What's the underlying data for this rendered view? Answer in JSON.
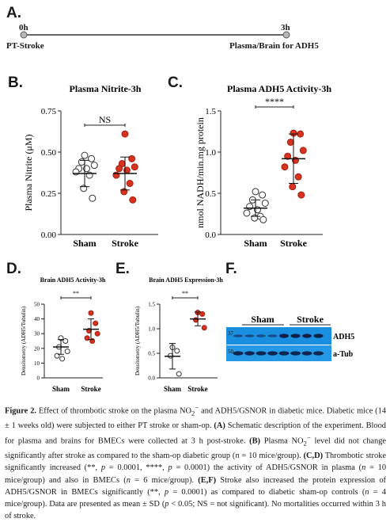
{
  "panels": {
    "a": {
      "letter": "A.",
      "time_start": "0h",
      "time_end": "3h",
      "label_start": "PT-Stroke",
      "label_end": "Plasma/Brain for ADH5"
    },
    "d": {
      "letter": "D."
    },
    "e": {
      "letter": "E."
    },
    "f": {
      "letter": "F.",
      "group_left": "Sham",
      "group_right": "Stroke",
      "band_top_label": "ADH5",
      "band_bottom_label": "a-Tub",
      "marker_top": "37",
      "marker_bottom": "50"
    }
  },
  "chart_data": [
    {
      "panel": "B.",
      "type": "scatter",
      "title": "Plasma Nitrite-3h",
      "ylabel": "Plasma Nitrite (μM)",
      "categories": [
        "Sham",
        "Stroke"
      ],
      "ylim": [
        0,
        0.75
      ],
      "yticks": [
        "0.00",
        "0.25",
        "0.50",
        "0.75"
      ],
      "significance": "NS",
      "series": [
        {
          "values": [
            0.48,
            0.46,
            0.44,
            0.42,
            0.4,
            0.4,
            0.38,
            0.36,
            0.28,
            0.22
          ],
          "mean": 0.37,
          "sd": 0.08
        },
        {
          "values": [
            0.61,
            0.46,
            0.43,
            0.41,
            0.4,
            0.39,
            0.36,
            0.31,
            0.26,
            0.21
          ],
          "mean": 0.37,
          "sd": 0.1
        }
      ]
    },
    {
      "panel": "C.",
      "type": "scatter",
      "title": "Plasma ADH5 Activity-3h",
      "ylabel": "nmol NADH/min.mg protein",
      "categories": [
        "Sham",
        "Stroke"
      ],
      "ylim": [
        0,
        1.5
      ],
      "yticks": [
        "0.0",
        "0.5",
        "1.0",
        "1.5"
      ],
      "significance": "****",
      "series": [
        {
          "values": [
            0.52,
            0.48,
            0.42,
            0.38,
            0.34,
            0.3,
            0.26,
            0.22,
            0.2,
            0.18
          ],
          "mean": 0.32,
          "sd": 0.1
        },
        {
          "values": [
            1.23,
            1.22,
            1.12,
            1.02,
            0.95,
            0.9,
            0.82,
            0.7,
            0.58,
            0.48
          ],
          "mean": 0.92,
          "sd": 0.3
        }
      ]
    },
    {
      "panel": "D.",
      "type": "scatter",
      "title": "Brain ADH5 Activity-3h",
      "ylabel": "Densitometry (ADH5/Tubulin)",
      "categories": [
        "Sham",
        "Stroke"
      ],
      "ylim": [
        0,
        50
      ],
      "yticks": [
        "0",
        "10",
        "20",
        "30",
        "40",
        "50"
      ],
      "significance": "**",
      "series": [
        {
          "values": [
            27,
            25,
            21,
            18,
            15,
            13
          ],
          "mean": 21,
          "sd": 5
        },
        {
          "values": [
            44,
            37,
            32,
            30,
            27,
            25
          ],
          "mean": 33,
          "sd": 7
        }
      ]
    },
    {
      "panel": "E.",
      "type": "scatter",
      "title": "Brain ADH5 Expression-3h",
      "ylabel": "Densitometry (ADH5/Tubulin)",
      "categories": [
        "Sham",
        "Stroke"
      ],
      "ylim": [
        0,
        1.5
      ],
      "yticks": [
        "0.0",
        "0.5",
        "1.0",
        "1.5"
      ],
      "significance": "**",
      "series": [
        {
          "values": [
            0.62,
            0.55,
            0.45,
            0.08
          ],
          "mean": 0.44,
          "sd": 0.26
        },
        {
          "values": [
            1.33,
            1.3,
            1.18,
            1.02
          ],
          "mean": 1.2,
          "sd": 0.14
        }
      ]
    }
  ],
  "caption": {
    "fig_label": "Figure 2.",
    "text1": "Effect of thrombotic stroke on the plasma NO",
    "text2": " and ADH5/GSNOR in diabetic mice. Diabetic mice (14 ± 1 weeks old) were subjected to either PT stroke or sham-op. ",
    "ref_a": "(A)",
    "text3": " Schematic description of the experiment. Blood for plasma and brains for BMECs were collected at 3 h post-stroke. ",
    "ref_b": "(B)",
    "text4": " Plasma NO",
    "text5": " level did not change significantly after stroke as compared to the sham-op diabetic group (",
    "n1": "n",
    "text6": " = 10 mice/group). ",
    "ref_cd": "(C,D)",
    "text7": " Thrombotic stroke significantly increased (",
    "text8": "**, ",
    "p1": "p",
    "text9": " = 0.0001, ****, ",
    "p2": "p",
    "text10": " = 0.0001) the activity of ADH5/GSNOR in plasma (",
    "n2": "n",
    "text11": " = 10 mice/group) and also in BMECs (",
    "n3": "n",
    "text12": " = 6 mice/group). ",
    "ref_ef": "(E,F)",
    "text13": " Stroke also increased the protein expression of ADH5/GSNOR in BMECs significantly (**, ",
    "p3": "p",
    "text14": " = 0.0001) as compared to diabetic sham-op controls (",
    "n4": "n",
    "text15": " = 4 mice/group). Data are presented as mean ± SD (",
    "p4": "p",
    "text16": " < 0.05; NS = not significant). No mortalities occurred within 3 h of stroke."
  }
}
